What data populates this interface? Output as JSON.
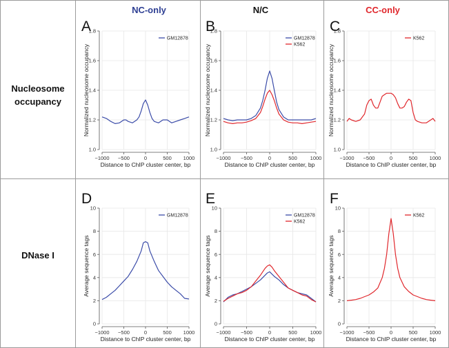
{
  "colors": {
    "nc_blue": "#2e3f93",
    "cc_red": "#e0262b",
    "black": "#111111",
    "gm12878": "#3a4ba8",
    "k562": "#e0262b"
  },
  "column_headers": [
    {
      "label": "NC-only",
      "color": "#2e3f93"
    },
    {
      "label": "N/C",
      "color": "#111111"
    },
    {
      "label": "CC-only",
      "color": "#e0262b"
    }
  ],
  "row_labels": [
    [
      "Nucleosome",
      "occupancy"
    ],
    [
      "DNase I"
    ]
  ],
  "chart_data": [
    {
      "panel": "A",
      "type": "line",
      "xlabel": "Distance to ChIP cluster center, bp",
      "ylabel": "Normalized nucleosome occupancy",
      "xlim": [
        -1000,
        1000
      ],
      "ylim": [
        1.0,
        1.8
      ],
      "xticks": [
        -1000,
        -500,
        0,
        500,
        1000
      ],
      "xtick_labels": [
        "−1000",
        "−500",
        "0",
        "500",
        "1000"
      ],
      "yticks": [
        1.0,
        1.2,
        1.4,
        1.6,
        1.8
      ],
      "ytick_labels": [
        "1.0",
        "1.2",
        "1.4",
        "1.6",
        "1.8"
      ],
      "legend_position": "top-right",
      "series": [
        {
          "name": "GM12878",
          "color": "#3a4ba8",
          "x": [
            -1000,
            -900,
            -800,
            -700,
            -600,
            -500,
            -450,
            -400,
            -300,
            -200,
            -150,
            -100,
            -50,
            0,
            50,
            100,
            150,
            200,
            300,
            400,
            500,
            600,
            700,
            800,
            900,
            1000
          ],
          "y": [
            1.22,
            1.21,
            1.19,
            1.175,
            1.18,
            1.2,
            1.2,
            1.19,
            1.18,
            1.2,
            1.22,
            1.26,
            1.31,
            1.335,
            1.3,
            1.25,
            1.21,
            1.19,
            1.18,
            1.2,
            1.2,
            1.18,
            1.19,
            1.2,
            1.21,
            1.22
          ]
        }
      ]
    },
    {
      "panel": "B",
      "type": "line",
      "xlabel": "Distance to ChIP cluster center, bp",
      "ylabel": "Normalized nucleosome occupancy",
      "xlim": [
        -1000,
        1000
      ],
      "ylim": [
        1.0,
        1.8
      ],
      "xticks": [
        -1000,
        -500,
        0,
        500,
        1000
      ],
      "xtick_labels": [
        "−1000",
        "−500",
        "0",
        "500",
        "1000"
      ],
      "yticks": [
        1.0,
        1.2,
        1.4,
        1.6,
        1.8
      ],
      "ytick_labels": [
        "1.0",
        "1.2",
        "1.4",
        "1.6",
        "1.8"
      ],
      "legend_position": "top-right",
      "series": [
        {
          "name": "GM12878",
          "color": "#3a4ba8",
          "x": [
            -1000,
            -900,
            -800,
            -700,
            -600,
            -500,
            -400,
            -300,
            -200,
            -150,
            -100,
            -50,
            0,
            50,
            100,
            150,
            200,
            300,
            400,
            500,
            600,
            700,
            800,
            900,
            1000
          ],
          "y": [
            1.21,
            1.2,
            1.195,
            1.2,
            1.2,
            1.2,
            1.21,
            1.23,
            1.28,
            1.33,
            1.4,
            1.48,
            1.53,
            1.48,
            1.4,
            1.32,
            1.27,
            1.22,
            1.2,
            1.2,
            1.2,
            1.2,
            1.2,
            1.2,
            1.21
          ]
        },
        {
          "name": "K562",
          "color": "#e0262b",
          "x": [
            -1000,
            -900,
            -800,
            -700,
            -600,
            -500,
            -400,
            -300,
            -200,
            -150,
            -100,
            -50,
            0,
            50,
            100,
            150,
            200,
            300,
            400,
            500,
            600,
            700,
            800,
            900,
            1000
          ],
          "y": [
            1.19,
            1.18,
            1.175,
            1.18,
            1.18,
            1.185,
            1.195,
            1.21,
            1.25,
            1.29,
            1.34,
            1.38,
            1.4,
            1.37,
            1.33,
            1.28,
            1.24,
            1.2,
            1.185,
            1.18,
            1.18,
            1.175,
            1.18,
            1.185,
            1.19
          ]
        }
      ]
    },
    {
      "panel": "C",
      "type": "line",
      "xlabel": "Distance to ChIP cluster center, bp",
      "ylabel": "Normalized nucleosome occupancy",
      "xlim": [
        -1000,
        1000
      ],
      "ylim": [
        1.0,
        1.8
      ],
      "xticks": [
        -1000,
        -500,
        0,
        500,
        1000
      ],
      "xtick_labels": [
        "−1000",
        "−500",
        "0",
        "500",
        "1000"
      ],
      "yticks": [
        1.0,
        1.2,
        1.4,
        1.6,
        1.8
      ],
      "ytick_labels": [
        "1.0",
        "1.2",
        "1.4",
        "1.6",
        "1.8"
      ],
      "legend_position": "top-right",
      "series": [
        {
          "name": "K562",
          "color": "#e0262b",
          "x": [
            -1000,
            -950,
            -900,
            -800,
            -700,
            -600,
            -550,
            -500,
            -450,
            -400,
            -350,
            -300,
            -250,
            -200,
            -150,
            -100,
            -50,
            0,
            50,
            100,
            150,
            200,
            250,
            300,
            350,
            400,
            450,
            500,
            550,
            600,
            700,
            800,
            900,
            950,
            1000
          ],
          "y": [
            1.19,
            1.21,
            1.2,
            1.19,
            1.2,
            1.24,
            1.3,
            1.33,
            1.34,
            1.3,
            1.28,
            1.28,
            1.32,
            1.36,
            1.37,
            1.38,
            1.38,
            1.38,
            1.37,
            1.35,
            1.31,
            1.28,
            1.28,
            1.29,
            1.32,
            1.34,
            1.33,
            1.25,
            1.2,
            1.19,
            1.18,
            1.18,
            1.2,
            1.21,
            1.19
          ]
        }
      ]
    },
    {
      "panel": "D",
      "type": "line",
      "xlabel": "Distance to ChIP cluster center, bp",
      "ylabel": "Average sequence tags",
      "xlim": [
        -1000,
        1000
      ],
      "ylim": [
        0,
        10
      ],
      "xticks": [
        -1000,
        -500,
        0,
        500,
        1000
      ],
      "xtick_labels": [
        "−1000",
        "−500",
        "0",
        "500",
        "1000"
      ],
      "yticks": [
        0,
        2,
        4,
        6,
        8,
        10
      ],
      "ytick_labels": [
        "0",
        "2",
        "4",
        "6",
        "8",
        "10"
      ],
      "legend_position": "top-right",
      "series": [
        {
          "name": "GM12878",
          "color": "#3a4ba8",
          "x": [
            -1000,
            -900,
            -800,
            -700,
            -600,
            -500,
            -400,
            -300,
            -200,
            -100,
            -50,
            0,
            50,
            100,
            200,
            300,
            400,
            500,
            600,
            700,
            800,
            900,
            1000
          ],
          "y": [
            2.1,
            2.3,
            2.6,
            2.9,
            3.3,
            3.7,
            4.1,
            4.7,
            5.4,
            6.3,
            7.0,
            7.1,
            7.0,
            6.3,
            5.4,
            4.6,
            4.1,
            3.6,
            3.2,
            2.9,
            2.6,
            2.2,
            2.15
          ]
        }
      ]
    },
    {
      "panel": "E",
      "type": "line",
      "xlabel": "Distance to ChIP cluster center, bp",
      "ylabel": "Average sequence tags",
      "xlim": [
        -1000,
        1000
      ],
      "ylim": [
        0,
        10
      ],
      "xticks": [
        -1000,
        -500,
        0,
        500,
        1000
      ],
      "xtick_labels": [
        "−1000",
        "−500",
        "0",
        "500",
        "1000"
      ],
      "yticks": [
        0,
        2,
        4,
        6,
        8,
        10
      ],
      "ytick_labels": [
        "0",
        "2",
        "4",
        "6",
        "8",
        "10"
      ],
      "legend_position": "top-right",
      "series": [
        {
          "name": "GM12878",
          "color": "#3a4ba8",
          "x": [
            -1000,
            -900,
            -800,
            -700,
            -600,
            -500,
            -400,
            -300,
            -200,
            -100,
            -50,
            0,
            50,
            100,
            200,
            300,
            400,
            500,
            600,
            700,
            800,
            900,
            1000
          ],
          "y": [
            1.9,
            2.3,
            2.5,
            2.6,
            2.8,
            3.0,
            3.2,
            3.5,
            3.8,
            4.2,
            4.4,
            4.5,
            4.3,
            4.1,
            3.8,
            3.4,
            3.1,
            2.9,
            2.7,
            2.6,
            2.5,
            2.2,
            1.9
          ]
        },
        {
          "name": "K562",
          "color": "#e0262b",
          "x": [
            -1000,
            -900,
            -800,
            -700,
            -600,
            -500,
            -400,
            -300,
            -200,
            -100,
            -50,
            0,
            50,
            100,
            200,
            300,
            400,
            500,
            600,
            700,
            800,
            900,
            1000
          ],
          "y": [
            1.95,
            2.2,
            2.4,
            2.6,
            2.7,
            2.9,
            3.2,
            3.7,
            4.2,
            4.8,
            5.0,
            5.1,
            4.9,
            4.6,
            4.1,
            3.6,
            3.1,
            2.9,
            2.7,
            2.5,
            2.4,
            2.1,
            1.9
          ]
        }
      ]
    },
    {
      "panel": "F",
      "type": "line",
      "xlabel": "Distance to ChIP cluster center, bp",
      "ylabel": "Average sequence tags",
      "xlim": [
        -1000,
        1000
      ],
      "ylim": [
        0,
        10
      ],
      "xticks": [
        -1000,
        -500,
        0,
        500,
        1000
      ],
      "xtick_labels": [
        "−1000",
        "−500",
        "0",
        "500",
        "1000"
      ],
      "yticks": [
        0,
        2,
        4,
        6,
        8,
        10
      ],
      "ytick_labels": [
        "0",
        "2",
        "4",
        "6",
        "8",
        "10"
      ],
      "legend_position": "top-right",
      "series": [
        {
          "name": "K562",
          "color": "#e0262b",
          "x": [
            -1000,
            -900,
            -800,
            -700,
            -600,
            -500,
            -400,
            -300,
            -200,
            -150,
            -100,
            -50,
            0,
            50,
            100,
            150,
            200,
            300,
            400,
            500,
            600,
            700,
            800,
            900,
            1000
          ],
          "y": [
            2.0,
            2.05,
            2.1,
            2.2,
            2.35,
            2.5,
            2.75,
            3.1,
            4.0,
            4.8,
            6.0,
            7.8,
            9.1,
            7.8,
            6.0,
            4.8,
            4.0,
            3.2,
            2.8,
            2.5,
            2.35,
            2.2,
            2.1,
            2.05,
            2.0
          ]
        }
      ]
    }
  ]
}
